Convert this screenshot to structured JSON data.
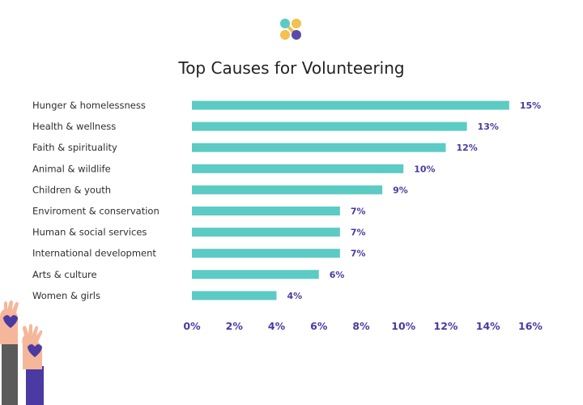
{
  "colors": {
    "bar": "#5ccbc4",
    "value_label": "#4b3aa1",
    "logo_teal": "#5ccbc4",
    "logo_yellow": "#f2c14e",
    "logo_purple": "#5b4aa8"
  },
  "icons": [
    "brand-logo-icon",
    "raised-hands-heart-illustration"
  ],
  "chart_data": {
    "type": "bar",
    "orientation": "horizontal",
    "title": "Top Causes for Volunteering",
    "xlabel": "",
    "ylabel": "",
    "categories": [
      "Hunger & homelessness",
      "Health & wellness",
      "Faith & spirituality",
      "Animal & wildlife",
      "Children & youth",
      "Enviroment & conservation",
      "Human & social services",
      "International development",
      "Arts & culture",
      "Women & girls"
    ],
    "values": [
      15,
      13,
      12,
      10,
      9,
      7,
      7,
      7,
      6,
      4
    ],
    "value_labels": [
      "15%",
      "13%",
      "12%",
      "10%",
      "9%",
      "7%",
      "7%",
      "7%",
      "6%",
      "4%"
    ],
    "xlim": [
      0,
      16
    ],
    "xticks": [
      0,
      2,
      4,
      6,
      8,
      10,
      12,
      14,
      16
    ],
    "xtick_labels": [
      "0%",
      "2%",
      "4%",
      "6%",
      "8%",
      "10%",
      "12%",
      "14%",
      "16%"
    ],
    "grid": false,
    "legend": "none"
  }
}
